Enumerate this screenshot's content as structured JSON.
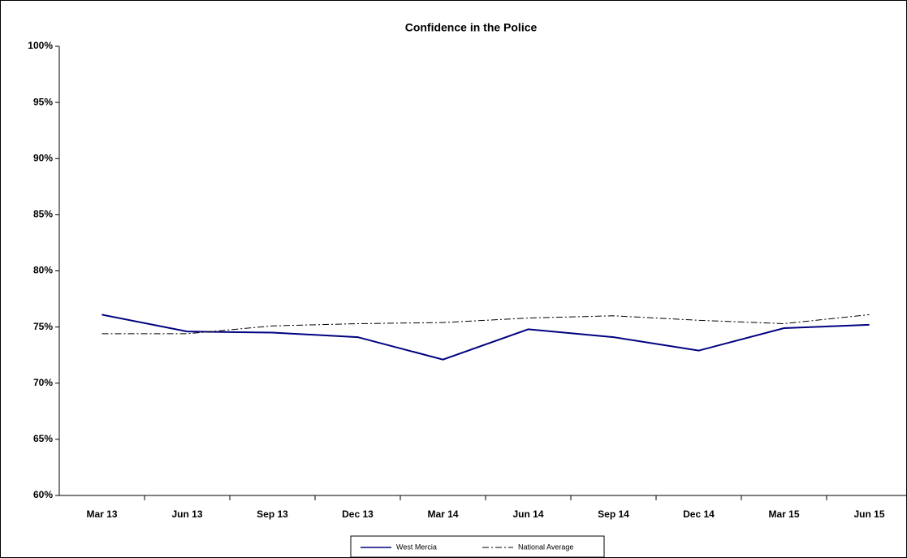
{
  "chart_data": {
    "type": "line",
    "title": "Confidence in the Police",
    "categories": [
      "Mar 13",
      "Jun 13",
      "Sep 13",
      "Dec 13",
      "Mar 14",
      "Jun 14",
      "Sep 14",
      "Dec 14",
      "Mar 15",
      "Jun 15"
    ],
    "series": [
      {
        "name": "West Mercia",
        "color": "#000080",
        "style": "solid",
        "values": [
          76.1,
          74.6,
          74.5,
          74.1,
          72.1,
          74.8,
          74.1,
          72.9,
          74.9,
          75.2
        ]
      },
      {
        "name": "National Average",
        "color": "#000000",
        "style": "dash-dot",
        "values": [
          74.4,
          74.4,
          75.1,
          75.3,
          75.4,
          75.8,
          76.0,
          75.6,
          75.3,
          76.1
        ]
      }
    ],
    "ylim": [
      60,
      100
    ],
    "yticks": [
      {
        "value": 60,
        "label": "60%"
      },
      {
        "value": 65,
        "label": "65%"
      },
      {
        "value": 70,
        "label": "70%"
      },
      {
        "value": 75,
        "label": "75%"
      },
      {
        "value": 80,
        "label": "80%"
      },
      {
        "value": 85,
        "label": "85%"
      },
      {
        "value": 90,
        "label": "90%"
      },
      {
        "value": 95,
        "label": "95%"
      },
      {
        "value": 100,
        "label": "100%"
      }
    ],
    "grid": false,
    "legend": "bottom"
  }
}
